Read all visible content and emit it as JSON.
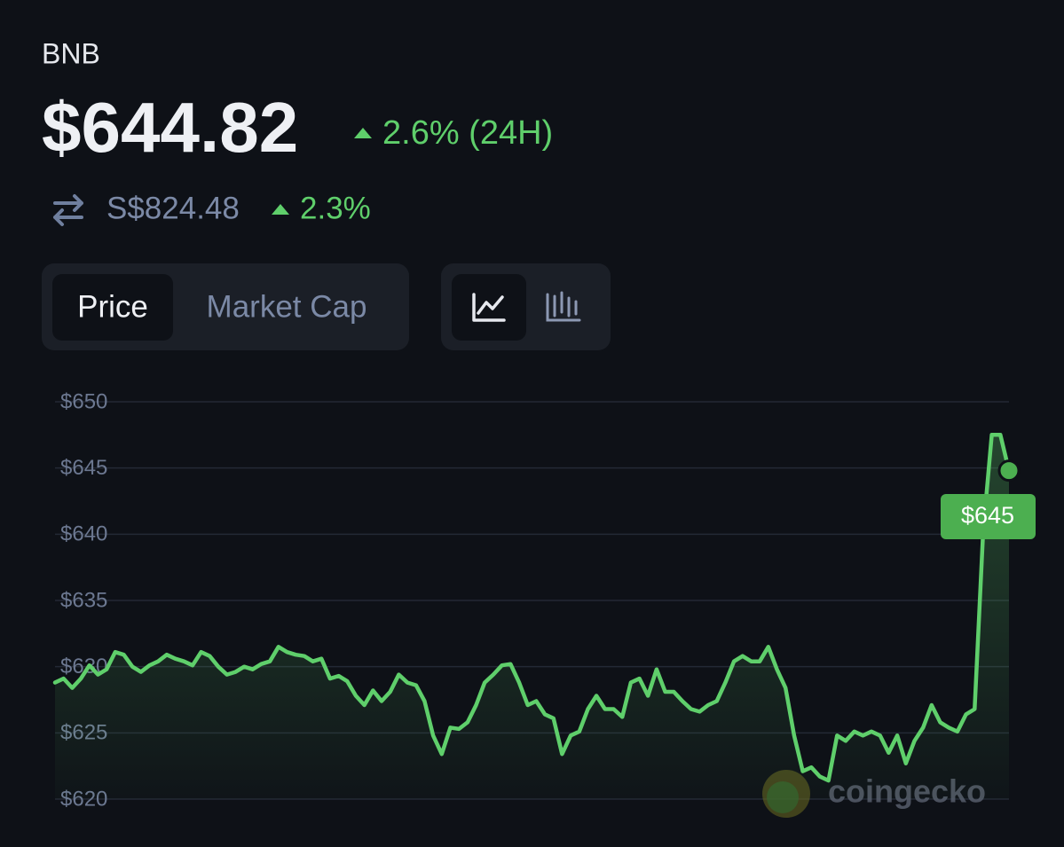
{
  "header": {
    "symbol": "BNB",
    "price": "$644.82",
    "change": "2.6% (24H)",
    "alt_price": "S$824.48",
    "alt_change": "2.3%"
  },
  "tabs": [
    "Price",
    "Market Cap"
  ],
  "chart_data": {
    "type": "line",
    "color": "#5fcf6b",
    "ylim": [
      620,
      650
    ],
    "yticks": [
      {
        "value": 650,
        "label": "$650"
      },
      {
        "value": 645,
        "label": "$645"
      },
      {
        "value": 640,
        "label": "$640"
      },
      {
        "value": 635,
        "label": "$635"
      },
      {
        "value": 630,
        "label": "$630"
      },
      {
        "value": 625,
        "label": "$625"
      },
      {
        "value": 620,
        "label": "$620"
      }
    ],
    "grid": true,
    "values": [
      628.8,
      629.1,
      628.4,
      629.1,
      630.1,
      629.4,
      629.8,
      631.1,
      630.9,
      630.0,
      629.6,
      630.1,
      630.4,
      630.9,
      630.6,
      630.4,
      630.1,
      631.1,
      630.8,
      630.0,
      629.4,
      629.6,
      630.0,
      629.8,
      630.2,
      630.4,
      631.5,
      631.1,
      630.9,
      630.8,
      630.4,
      630.6,
      629.1,
      629.3,
      628.9,
      627.8,
      627.1,
      628.2,
      627.4,
      628.1,
      629.4,
      628.8,
      628.6,
      627.4,
      624.8,
      623.4,
      625.4,
      625.3,
      625.8,
      627.1,
      628.8,
      629.4,
      630.1,
      630.2,
      628.8,
      627.1,
      627.4,
      626.4,
      626.1,
      623.4,
      624.8,
      625.1,
      626.8,
      627.8,
      626.8,
      626.8,
      626.2,
      628.8,
      629.1,
      627.8,
      629.8,
      628.1,
      628.1,
      627.4,
      626.8,
      626.6,
      627.1,
      627.4,
      628.8,
      630.4,
      630.8,
      630.4,
      630.4,
      631.5,
      629.8,
      628.4,
      624.8,
      622.1,
      622.4,
      621.7,
      621.4,
      624.8,
      624.4,
      625.1,
      624.8,
      625.1,
      624.8,
      623.5,
      624.8,
      622.7,
      624.4,
      625.4,
      627.1,
      625.8,
      625.4,
      625.1,
      626.4,
      626.8,
      640.2,
      647.5,
      647.5,
      644.8
    ],
    "end_label": "$645",
    "watermark": "coingecko"
  }
}
